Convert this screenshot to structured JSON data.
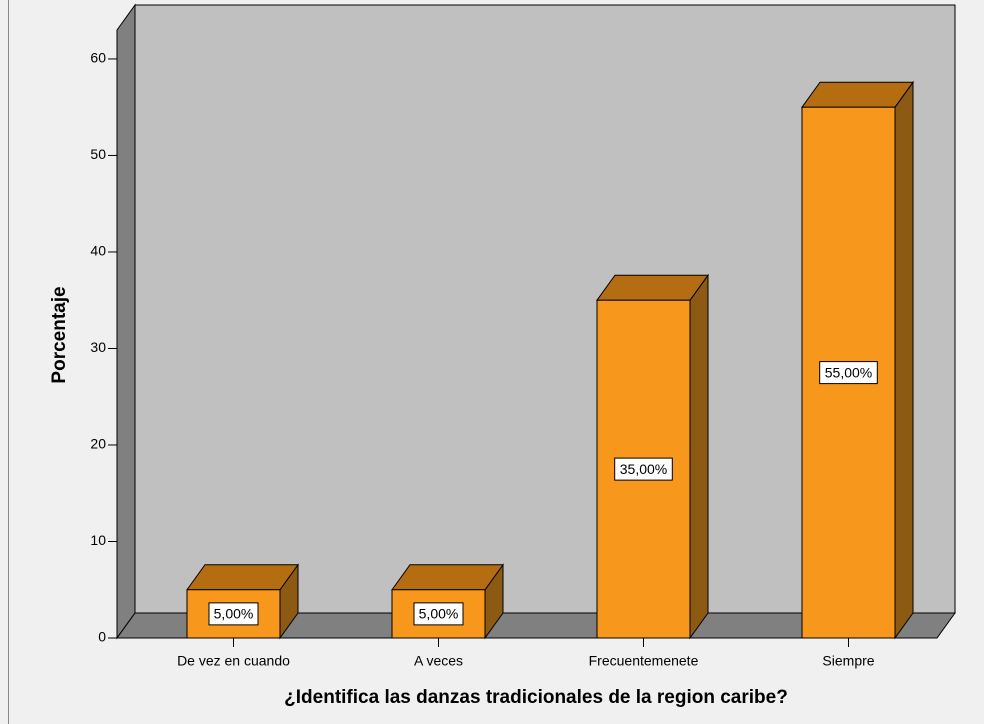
{
  "chart_data": {
    "type": "bar3d",
    "x_label": "¿Identifica las danzas tradicionales de la region caribe?",
    "y_label": "Porcentaje",
    "categories": [
      "De vez en cuando",
      "A veces",
      "Frecuentemenete",
      "Siempre"
    ],
    "values": [
      5,
      5,
      35,
      55
    ],
    "value_labels": [
      "5,00%",
      "5,00%",
      "35,00%",
      "55,00%"
    ],
    "color": "#f7981d",
    "ylim": [
      0,
      63
    ],
    "yticks": [
      0,
      10,
      20,
      30,
      40,
      50,
      60
    ]
  }
}
